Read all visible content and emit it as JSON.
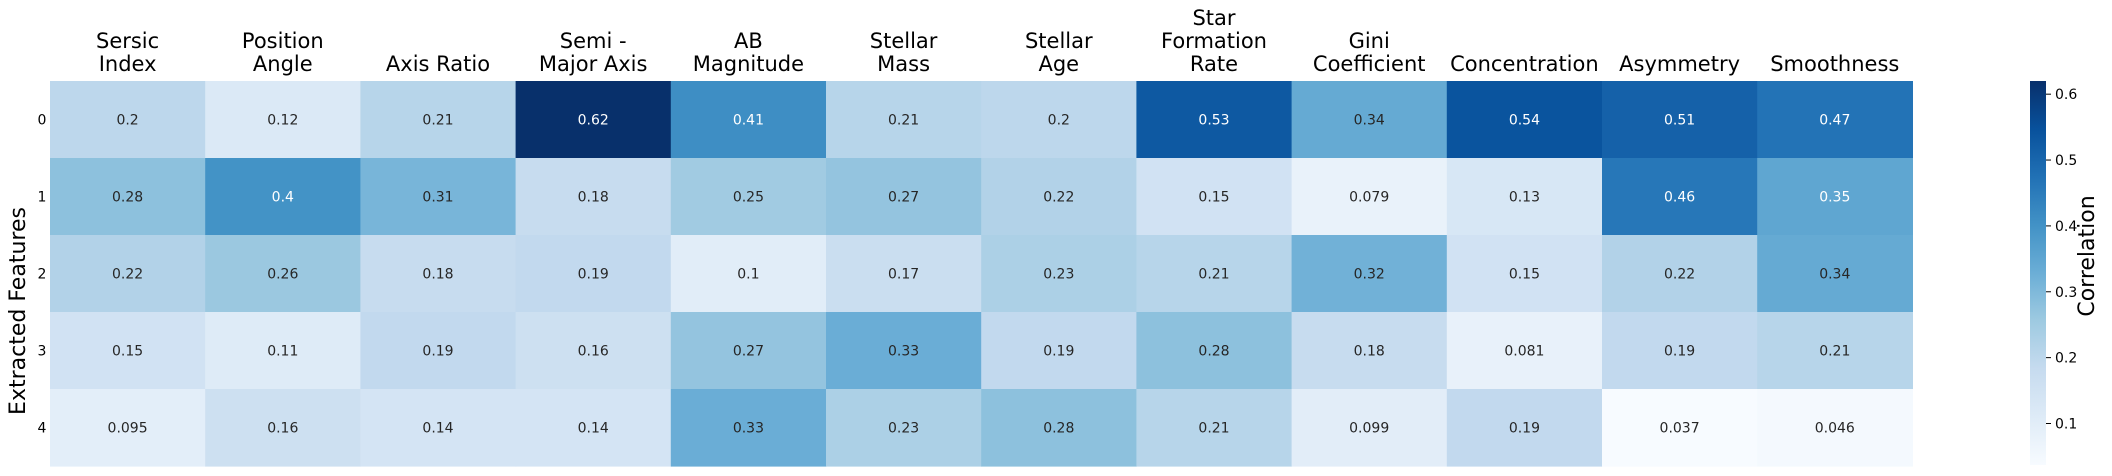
{
  "chart_data": {
    "type": "heatmap",
    "title": "",
    "ylabel": "Extracted Features",
    "xlabel": "",
    "columns": [
      [
        "Sersic",
        "Index"
      ],
      [
        "Position",
        "Angle"
      ],
      [
        "Axis Ratio"
      ],
      [
        "Semi -",
        "Major Axis"
      ],
      [
        "AB",
        "Magnitude"
      ],
      [
        "Stellar",
        "Mass"
      ],
      [
        "Stellar",
        "Age"
      ],
      [
        "Star",
        "Formation",
        "Rate"
      ],
      [
        "Gini",
        "Coefficient"
      ],
      [
        "Concentration"
      ],
      [
        "Asymmetry"
      ],
      [
        "Smoothness"
      ]
    ],
    "rows": [
      "0",
      "1",
      "2",
      "3",
      "4"
    ],
    "values": [
      [
        0.2,
        0.12,
        0.21,
        0.62,
        0.41,
        0.21,
        0.2,
        0.53,
        0.34,
        0.54,
        0.51,
        0.47
      ],
      [
        0.28,
        0.4,
        0.31,
        0.18,
        0.25,
        0.27,
        0.22,
        0.15,
        0.079,
        0.13,
        0.46,
        0.35
      ],
      [
        0.22,
        0.26,
        0.18,
        0.19,
        0.1,
        0.17,
        0.23,
        0.21,
        0.32,
        0.15,
        0.22,
        0.34
      ],
      [
        0.15,
        0.11,
        0.19,
        0.16,
        0.27,
        0.33,
        0.19,
        0.28,
        0.18,
        0.081,
        0.19,
        0.21
      ],
      [
        0.095,
        0.16,
        0.14,
        0.14,
        0.33,
        0.23,
        0.28,
        0.21,
        0.099,
        0.19,
        0.037,
        0.046
      ]
    ],
    "colorbar": {
      "label": "Correlation",
      "range": [
        0.037,
        0.62
      ],
      "ticks": [
        0.1,
        0.2,
        0.3,
        0.4,
        0.5,
        0.6
      ],
      "tick_labels": [
        "0.1",
        "0.2",
        "0.3",
        "0.4",
        "0.5",
        "0.6"
      ],
      "colormap": "Blues",
      "colors": [
        "#f7fbff",
        "#deebf7",
        "#c6dbef",
        "#9ecae1",
        "#6baed6",
        "#4292c6",
        "#2171b5",
        "#08519c",
        "#08306b"
      ]
    },
    "grid": false,
    "annotations": true
  }
}
